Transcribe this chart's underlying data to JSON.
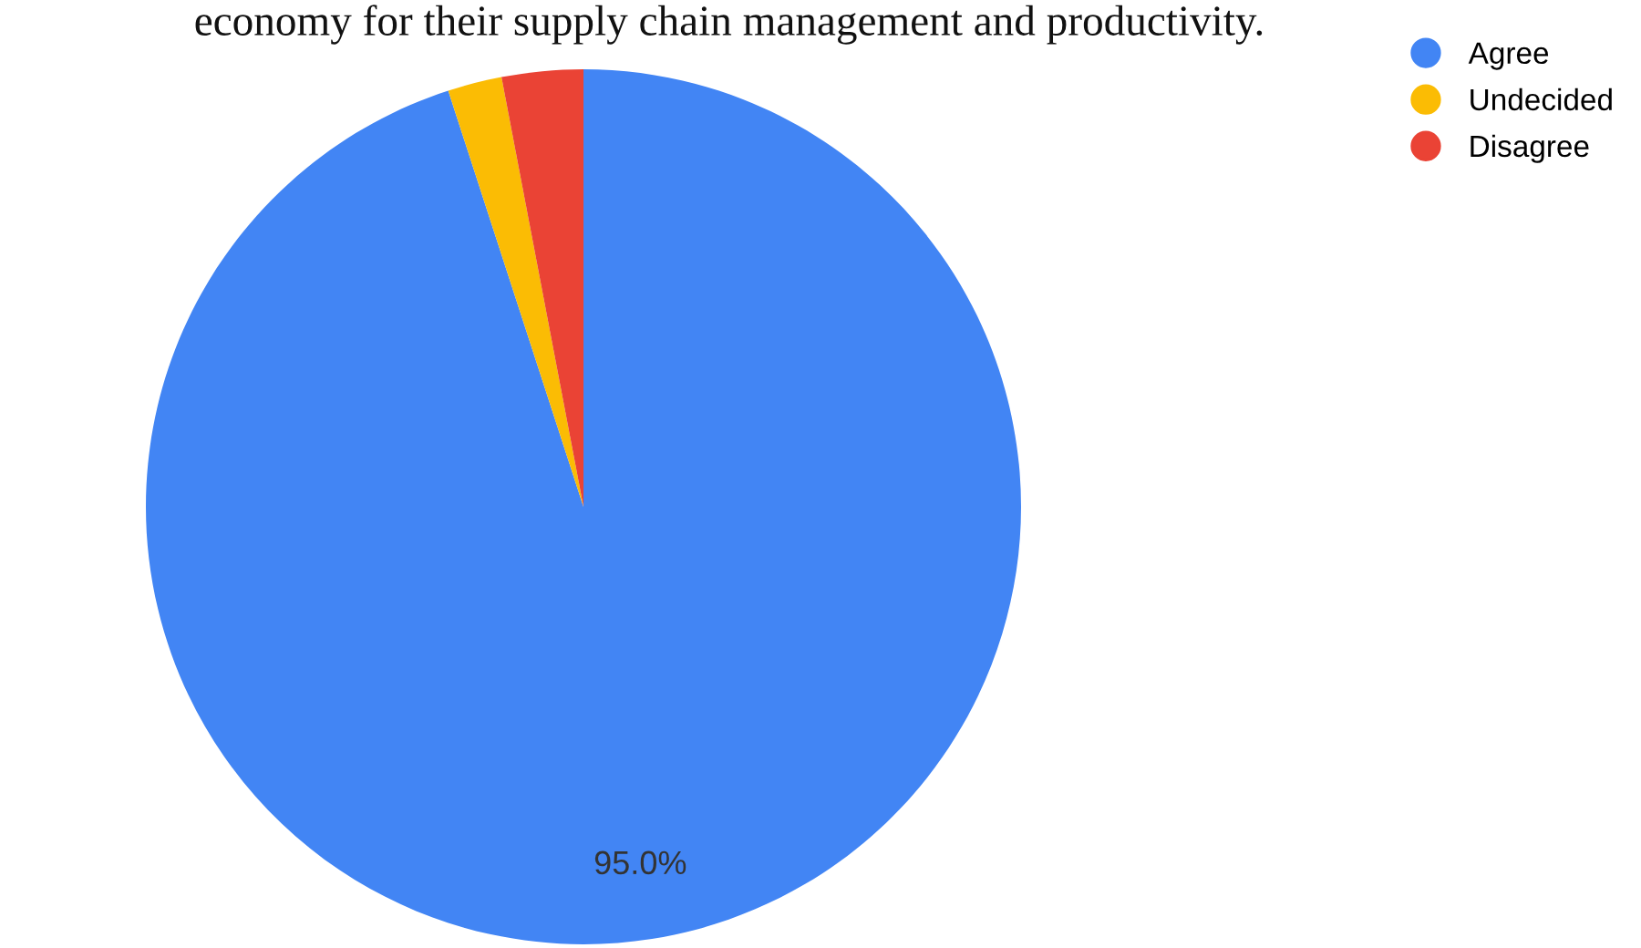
{
  "chart_data": {
    "type": "pie",
    "title": "economy for their supply chain management and productivity.",
    "categories": [
      "Agree",
      "Undecided",
      "Disagree"
    ],
    "values": [
      95.0,
      2.0,
      3.0
    ],
    "colors": [
      "#4285f4",
      "#fbbc04",
      "#ea4335"
    ],
    "value_labels": [
      "95.0%",
      null,
      null
    ],
    "legend": "top right"
  }
}
